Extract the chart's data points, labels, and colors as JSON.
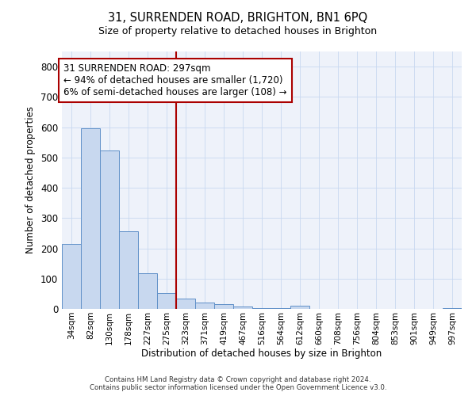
{
  "title": "31, SURRENDEN ROAD, BRIGHTON, BN1 6PQ",
  "subtitle": "Size of property relative to detached houses in Brighton",
  "xlabel": "Distribution of detached houses by size in Brighton",
  "ylabel": "Number of detached properties",
  "footnote1": "Contains HM Land Registry data © Crown copyright and database right 2024.",
  "footnote2": "Contains public sector information licensed under the Open Government Licence v3.0.",
  "bar_labels": [
    "34sqm",
    "82sqm",
    "130sqm",
    "178sqm",
    "227sqm",
    "275sqm",
    "323sqm",
    "371sqm",
    "419sqm",
    "467sqm",
    "516sqm",
    "564sqm",
    "612sqm",
    "660sqm",
    "708sqm",
    "756sqm",
    "804sqm",
    "853sqm",
    "901sqm",
    "949sqm",
    "997sqm"
  ],
  "bar_heights": [
    215,
    597,
    524,
    257,
    117,
    52,
    33,
    20,
    15,
    7,
    2,
    2,
    10,
    1,
    1,
    1,
    0,
    0,
    0,
    0,
    3
  ],
  "bar_color": "#c8d8ef",
  "bar_edge_color": "#6090c8",
  "ylim": [
    0,
    850
  ],
  "yticks": [
    0,
    100,
    200,
    300,
    400,
    500,
    600,
    700,
    800
  ],
  "property_line_x": 5.5,
  "property_line_color": "#aa0000",
  "annotation_line1": "31 SURRENDEN ROAD: 297sqm",
  "annotation_line2": "← 94% of detached houses are smaller (1,720)",
  "annotation_line3": "6% of semi-detached houses are larger (108) →",
  "annotation_box_edgecolor": "#aa0000",
  "grid_color": "#c8d8f0",
  "background_color": "#eef2fa"
}
